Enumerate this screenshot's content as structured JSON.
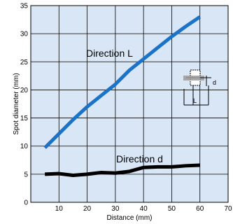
{
  "chart_data": {
    "type": "line",
    "xlabel": "Distance (mm)",
    "ylabel": "Spot diameter (mm)",
    "xlim": [
      0,
      70
    ],
    "ylim": [
      0,
      35
    ],
    "xticks": [
      10,
      20,
      30,
      40,
      50,
      60,
      70
    ],
    "yticks": [
      0,
      5,
      10,
      15,
      20,
      25,
      30,
      35
    ],
    "grid": true,
    "background_color": "#d9e6f5",
    "series": [
      {
        "name": "Direction L",
        "color": "#1a73c9",
        "x": [
          5,
          10,
          15,
          20,
          25,
          30,
          35,
          40,
          45,
          50,
          55,
          60
        ],
        "y": [
          9.7,
          12.2,
          14.7,
          17.0,
          19.0,
          21.0,
          23.5,
          25.5,
          27.5,
          29.5,
          31.3,
          33.0
        ]
      },
      {
        "name": "Direction d",
        "color": "#000000",
        "x": [
          5,
          10,
          15,
          20,
          25,
          30,
          35,
          40,
          45,
          50,
          55,
          60
        ],
        "y": [
          5.0,
          5.1,
          4.8,
          5.0,
          5.3,
          5.2,
          5.5,
          6.2,
          6.3,
          6.3,
          6.5,
          6.6
        ]
      }
    ],
    "inset": {
      "labels": [
        "d",
        "L"
      ]
    }
  }
}
